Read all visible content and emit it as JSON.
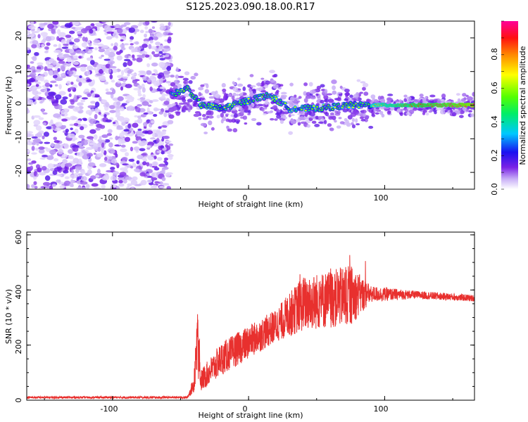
{
  "title": "S125.2023.090.18.00.R17",
  "chart_data": [
    {
      "type": "heatmap",
      "xlabel": "Height of straight line (km)",
      "ylabel": "Frequency (Hz)",
      "xlim": [
        -163,
        166
      ],
      "ylim": [
        -25,
        25
      ],
      "x_ticks": [
        "-100",
        "0",
        "100"
      ],
      "y_ticks": [
        "-20",
        "-10",
        "0",
        "10",
        "20"
      ],
      "colorbar": {
        "label": "Normalized spectral amplitude",
        "range": [
          0,
          1
        ],
        "ticks": [
          "0.0",
          "0.2",
          "0.4",
          "0.6",
          "0.8"
        ]
      },
      "features": {
        "noise_region_km": [
          -163,
          -57
        ],
        "signal_start_km": -57,
        "ridge_frequency_hz": 0,
        "ridge_profile": [
          {
            "x": -57,
            "y": 3
          },
          {
            "x": -45,
            "y": 5
          },
          {
            "x": -35,
            "y": 0
          },
          {
            "x": -20,
            "y": -1
          },
          {
            "x": 5,
            "y": 2
          },
          {
            "x": 15,
            "y": 3
          },
          {
            "x": 30,
            "y": -1
          },
          {
            "x": 50,
            "y": -1
          },
          {
            "x": 75,
            "y": 0
          },
          {
            "x": 166,
            "y": 0
          }
        ]
      }
    },
    {
      "type": "line",
      "xlabel": "Height of straight line (km)",
      "ylabel": "SNR (10 * v/v)",
      "xlim": [
        -163,
        166
      ],
      "ylim": [
        0,
        610
      ],
      "x_ticks": [
        "-100",
        "0",
        "100"
      ],
      "y_ticks": [
        "0",
        "200",
        "400",
        "600"
      ],
      "color": "#e8302e",
      "envelope": [
        {
          "x": -163,
          "base": 10,
          "noise": 4
        },
        {
          "x": -45,
          "base": 10,
          "noise": 4
        },
        {
          "x": -40,
          "base": 60,
          "noise": 30
        },
        {
          "x": -38,
          "base": 200,
          "noise": 100
        },
        {
          "x": -35,
          "base": 70,
          "noise": 40
        },
        {
          "x": -20,
          "base": 150,
          "noise": 60
        },
        {
          "x": 0,
          "base": 210,
          "noise": 60
        },
        {
          "x": 20,
          "base": 270,
          "noise": 60
        },
        {
          "x": 40,
          "base": 350,
          "noise": 100
        },
        {
          "x": 75,
          "base": 380,
          "noise": 110
        },
        {
          "x": 90,
          "base": 385,
          "noise": 30
        },
        {
          "x": 120,
          "base": 383,
          "noise": 15
        },
        {
          "x": 166,
          "base": 370,
          "noise": 12
        }
      ]
    }
  ]
}
